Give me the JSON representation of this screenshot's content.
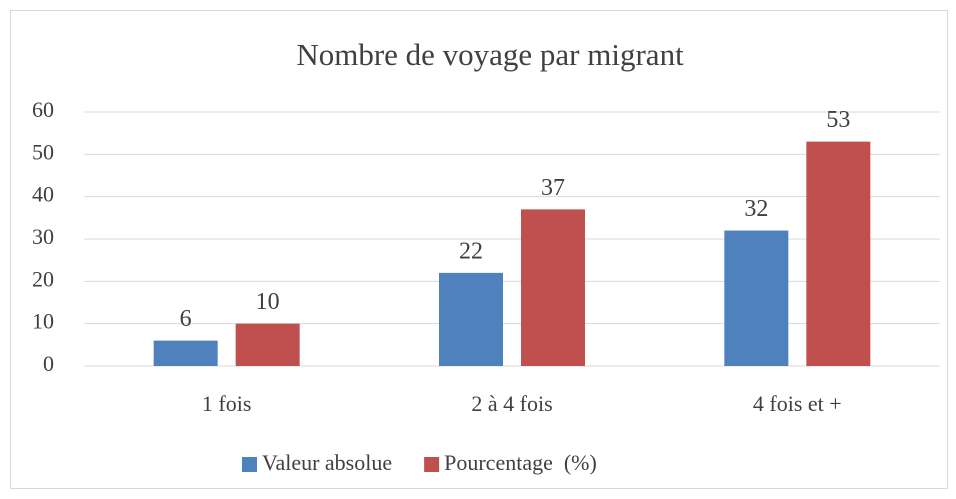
{
  "chart_data": {
    "type": "bar",
    "title": "Nombre de voyage par migrant",
    "categories": [
      "1 fois",
      "2 à 4 fois",
      "4 fois et +"
    ],
    "series": [
      {
        "name": "Valeur absolue",
        "color": "#4f81bd",
        "values": [
          6,
          22,
          32
        ]
      },
      {
        "name": "Pourcentage  (%)",
        "color": "#c0504d",
        "values": [
          10,
          37,
          53
        ]
      }
    ],
    "ylim": [
      0,
      60
    ],
    "yticks": [
      0,
      10,
      20,
      30,
      40,
      50,
      60
    ],
    "grid": true,
    "legend": "bottom"
  }
}
